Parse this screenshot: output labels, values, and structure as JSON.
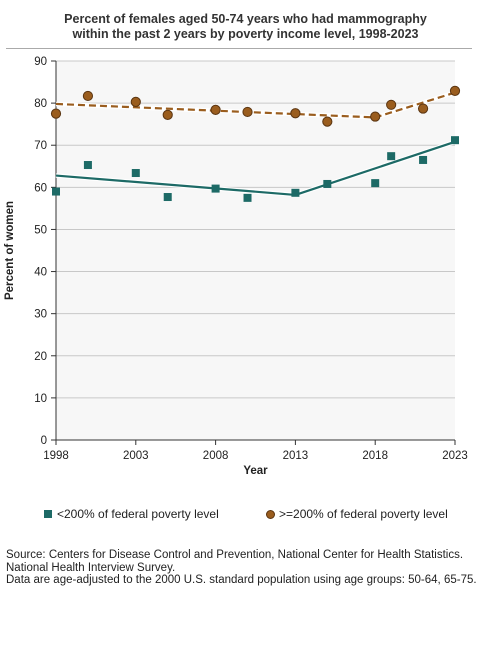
{
  "chart_data": {
    "type": "line",
    "title": "Percent of females aged 50-74 years who had mammography within the past 2 years by poverty income level, 1998-2023",
    "title_lines": [
      "Percent of females aged 50-74 years who had mammography",
      "within the past 2 years by poverty income level, 1998-2023"
    ],
    "xlabel": "Year",
    "ylabel": "Percent of women",
    "xlim": [
      1998,
      2023
    ],
    "ylim": [
      0,
      90
    ],
    "x_ticks": [
      1998,
      2003,
      2008,
      2013,
      2018,
      2023
    ],
    "y_ticks": [
      0,
      10,
      20,
      30,
      40,
      50,
      60,
      70,
      80,
      90
    ],
    "grid": "horizontal",
    "legend_position": "bottom",
    "series": [
      {
        "name": "<200% of federal poverty level",
        "marker": "square",
        "color": "#1d6a66",
        "line_style": "solid",
        "points": [
          {
            "x": 1998,
            "y": 59.0
          },
          {
            "x": 2000,
            "y": 65.3
          },
          {
            "x": 2003,
            "y": 63.4
          },
          {
            "x": 2005,
            "y": 57.7
          },
          {
            "x": 2008,
            "y": 59.7
          },
          {
            "x": 2010,
            "y": 57.5
          },
          {
            "x": 2013,
            "y": 58.7
          },
          {
            "x": 2015,
            "y": 60.8
          },
          {
            "x": 2018,
            "y": 61.0
          },
          {
            "x": 2019,
            "y": 67.4
          },
          {
            "x": 2021,
            "y": 66.5
          },
          {
            "x": 2023,
            "y": 71.2
          }
        ],
        "trend": [
          {
            "x": 1998,
            "y": 62.8
          },
          {
            "x": 2013,
            "y": 58.2
          },
          {
            "x": 2023,
            "y": 70.8
          }
        ]
      },
      {
        "name": ">=200% of federal poverty level",
        "marker": "circle",
        "color": "#9a5d1e",
        "line_style": "dashed",
        "points": [
          {
            "x": 1998,
            "y": 77.5
          },
          {
            "x": 2000,
            "y": 81.7
          },
          {
            "x": 2003,
            "y": 80.3
          },
          {
            "x": 2005,
            "y": 77.2
          },
          {
            "x": 2008,
            "y": 78.4
          },
          {
            "x": 2010,
            "y": 77.9
          },
          {
            "x": 2013,
            "y": 77.6
          },
          {
            "x": 2015,
            "y": 75.6
          },
          {
            "x": 2018,
            "y": 76.8
          },
          {
            "x": 2019,
            "y": 79.6
          },
          {
            "x": 2021,
            "y": 78.7
          },
          {
            "x": 2023,
            "y": 82.9
          }
        ],
        "trend": [
          {
            "x": 1998,
            "y": 79.8
          },
          {
            "x": 2018,
            "y": 76.6
          },
          {
            "x": 2023,
            "y": 82.5
          }
        ]
      }
    ]
  },
  "footnotes": {
    "source": "Source: Centers for Disease Control and Prevention, National Center for Health Statistics. National Health Interview Survey.",
    "note": "Data are age-adjusted to the 2000 U.S. standard population using age groups: 50-64, 65-75."
  }
}
